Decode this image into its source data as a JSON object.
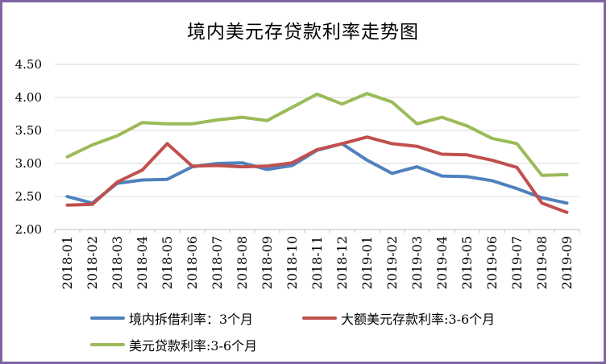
{
  "window": {
    "border_color": "#8064A2",
    "background": "#FFFFFF"
  },
  "chart_data": {
    "type": "line",
    "title": "境内美元存贷款利率走势图",
    "categories": [
      "2018-01",
      "2018-02",
      "2018-03",
      "2018-04",
      "2018-05",
      "2018-06",
      "2018-07",
      "2018-08",
      "2018-09",
      "2018-10",
      "2018-11",
      "2018-12",
      "2019-01",
      "2019-02",
      "2019-03",
      "2019-04",
      "2019-05",
      "2019-06",
      "2019-07",
      "2019-08",
      "2019-09"
    ],
    "series": [
      {
        "name": "境内拆借利率：3个月",
        "color": "#4F81BD",
        "values": [
          2.5,
          2.4,
          2.7,
          2.75,
          2.76,
          2.95,
          3.0,
          3.01,
          2.91,
          2.97,
          3.2,
          3.3,
          3.05,
          2.85,
          2.95,
          2.81,
          2.8,
          2.74,
          2.62,
          2.48,
          2.4
        ]
      },
      {
        "name": "大额美元存款利率:3-6个月",
        "color": "#C0504D",
        "values": [
          2.37,
          2.38,
          2.72,
          2.9,
          3.3,
          2.96,
          2.97,
          2.95,
          2.96,
          3.01,
          3.21,
          3.3,
          3.4,
          3.3,
          3.26,
          3.14,
          3.13,
          3.05,
          2.94,
          2.4,
          2.26
        ]
      },
      {
        "name": "美元贷款利率:3-6个月",
        "color": "#9BBB59",
        "values": [
          3.1,
          3.28,
          3.42,
          3.62,
          3.6,
          3.6,
          3.66,
          3.7,
          3.65,
          3.85,
          4.05,
          3.9,
          4.06,
          3.93,
          3.6,
          3.7,
          3.57,
          3.38,
          3.3,
          2.82,
          2.83
        ]
      }
    ],
    "ylim": [
      2.0,
      4.5
    ],
    "ytick_step": 0.5,
    "ytick_labels": [
      "2.00",
      "2.50",
      "3.00",
      "3.50",
      "4.00",
      "4.50"
    ],
    "grid": true,
    "gridline_color": "#D9D9D9",
    "axis_color": "#BFBFBF",
    "text_color": "#000000",
    "legend_position": "bottom-left",
    "line_width": 4
  }
}
